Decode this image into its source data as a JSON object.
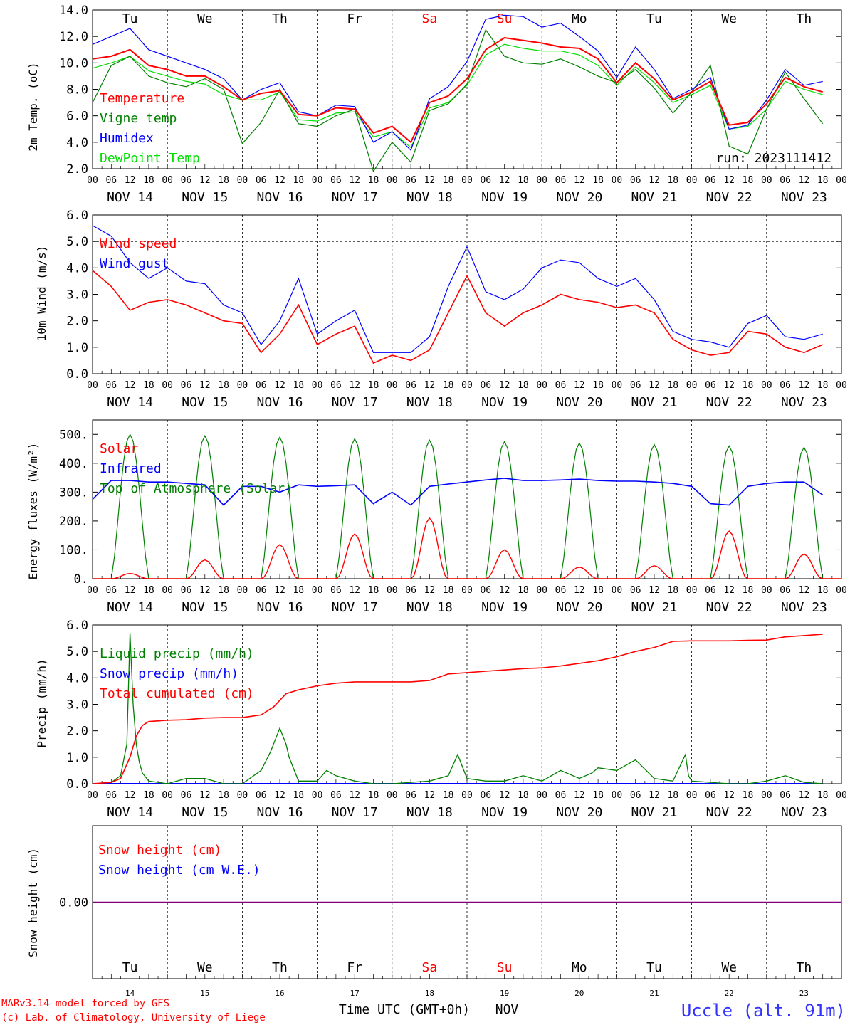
{
  "ticks": [
    "00",
    "06",
    "12",
    "18"
  ],
  "days": [
    {
      "abbr": "Tu",
      "date": "NOV 14",
      "dom": "14",
      "weekend": false
    },
    {
      "abbr": "We",
      "date": "NOV 15",
      "dom": "15",
      "weekend": false
    },
    {
      "abbr": "Th",
      "date": "NOV 16",
      "dom": "16",
      "weekend": false
    },
    {
      "abbr": "Fr",
      "date": "NOV 17",
      "dom": "17",
      "weekend": false
    },
    {
      "abbr": "Sa",
      "date": "NOV 18",
      "dom": "18",
      "weekend": true
    },
    {
      "abbr": "Su",
      "date": "NOV 19",
      "dom": "19",
      "weekend": true
    },
    {
      "abbr": "Mo",
      "date": "NOV 20",
      "dom": "20",
      "weekend": false
    },
    {
      "abbr": "Tu",
      "date": "NOV 21",
      "dom": "21",
      "weekend": false
    },
    {
      "abbr": "We",
      "date": "NOV 22",
      "dom": "22",
      "weekend": false
    },
    {
      "abbr": "Th",
      "date": "NOV 23",
      "dom": "23",
      "weekend": false
    }
  ],
  "colors": {
    "red": "#ff0000",
    "green": "#008000",
    "blue": "#0000ff",
    "lime": "#00e000",
    "purple": "#800080",
    "grid": "#000000"
  },
  "footer": {
    "credit1": "MARv3.14 model forced by GFS",
    "credit2": "(c) Lab. of Climatology, University of Liege",
    "xlabel": "Time UTC (GMT+0h)",
    "month": "NOV",
    "location": "Uccle (alt. 91m)"
  },
  "chart_data": [
    {
      "type": "line",
      "ylabel": "2m Temp. (oC)",
      "ylim": [
        2,
        14
      ],
      "yticks": [
        "2.0",
        "4.0",
        "6.0",
        "8.0",
        "10.0",
        "12.0",
        "14.0"
      ],
      "annotation": "run: 2023111412",
      "x_hours": [
        0,
        6,
        12,
        18,
        24,
        30,
        36,
        42,
        48,
        54,
        60,
        66,
        72,
        78,
        84,
        90,
        96,
        102,
        108,
        114,
        120,
        126,
        132,
        138,
        144,
        150,
        156,
        162,
        168,
        174,
        180,
        186,
        192,
        198,
        204,
        210,
        216,
        222,
        228,
        234
      ],
      "series": [
        {
          "name": "Temperature",
          "color": "red",
          "values": [
            10.3,
            10.5,
            11.0,
            9.8,
            9.5,
            9.0,
            9.0,
            8.2,
            7.2,
            7.7,
            7.9,
            6.1,
            6.0,
            6.6,
            6.5,
            4.7,
            5.2,
            4.0,
            7.0,
            7.5,
            8.8,
            11.0,
            11.9,
            11.7,
            11.5,
            11.2,
            11.1,
            10.3,
            8.5,
            10.0,
            8.8,
            7.2,
            7.8,
            8.6,
            5.3,
            5.5,
            6.9,
            8.9,
            8.2,
            7.8
          ]
        },
        {
          "name": "Vigne temp",
          "color": "green",
          "values": [
            7.0,
            9.8,
            10.5,
            9.0,
            8.5,
            8.2,
            8.8,
            8.0,
            3.9,
            5.5,
            8.0,
            5.4,
            5.2,
            6.0,
            6.5,
            1.8,
            4.0,
            2.5,
            6.4,
            6.9,
            8.4,
            12.5,
            10.5,
            10.0,
            9.9,
            10.3,
            9.7,
            9.0,
            8.5,
            9.5,
            8.1,
            6.2,
            7.8,
            9.8,
            3.7,
            3.1,
            6.5,
            9.3,
            7.3,
            5.4
          ]
        },
        {
          "name": "Humidex",
          "color": "blue",
          "values": [
            11.4,
            12.0,
            12.6,
            11.0,
            10.5,
            10.0,
            9.5,
            8.8,
            7.2,
            8.0,
            8.5,
            6.3,
            6.0,
            6.8,
            6.7,
            4.0,
            4.8,
            3.4,
            7.3,
            8.2,
            10.1,
            13.3,
            13.6,
            13.5,
            12.7,
            13.0,
            12.0,
            10.9,
            8.9,
            11.2,
            9.5,
            7.3,
            8.0,
            8.9,
            5.0,
            5.3,
            7.2,
            9.5,
            8.3,
            8.6
          ]
        },
        {
          "name": "DewPoint Temp",
          "color": "lime",
          "values": [
            9.6,
            10.0,
            10.5,
            9.4,
            9.0,
            8.6,
            8.4,
            7.6,
            7.2,
            7.2,
            7.8,
            5.7,
            5.6,
            6.2,
            6.3,
            4.4,
            4.8,
            3.6,
            6.6,
            7.0,
            8.3,
            10.6,
            11.4,
            11.1,
            10.9,
            10.9,
            10.6,
            9.8,
            8.3,
            9.7,
            8.5,
            7.0,
            7.6,
            8.3,
            5.0,
            5.2,
            6.5,
            8.6,
            8.0,
            7.6
          ]
        }
      ]
    },
    {
      "type": "line",
      "ylabel": "10m Wind (m/s)",
      "ylim": [
        0,
        6
      ],
      "yticks": [
        "0.0",
        "1.0",
        "2.0",
        "3.0",
        "4.0",
        "5.0",
        "6.0"
      ],
      "ref_line": 5.0,
      "x_hours": [
        0,
        6,
        12,
        18,
        24,
        30,
        36,
        42,
        48,
        54,
        60,
        66,
        72,
        78,
        84,
        90,
        96,
        102,
        108,
        114,
        120,
        126,
        132,
        138,
        144,
        150,
        156,
        162,
        168,
        174,
        180,
        186,
        192,
        198,
        204,
        210,
        216,
        222,
        228,
        234
      ],
      "series": [
        {
          "name": "Wind speed",
          "color": "red",
          "values": [
            3.9,
            3.3,
            2.4,
            2.7,
            2.8,
            2.6,
            2.3,
            2.0,
            1.9,
            0.8,
            1.5,
            2.6,
            1.1,
            1.5,
            1.8,
            0.4,
            0.7,
            0.5,
            0.9,
            2.3,
            3.7,
            2.3,
            1.8,
            2.3,
            2.6,
            3.0,
            2.8,
            2.7,
            2.5,
            2.6,
            2.3,
            1.3,
            0.9,
            0.7,
            0.8,
            1.6,
            1.5,
            1.0,
            0.8,
            1.1
          ]
        },
        {
          "name": "Wind gust",
          "color": "blue",
          "values": [
            5.6,
            5.2,
            4.2,
            3.6,
            4.0,
            3.5,
            3.4,
            2.6,
            2.3,
            1.1,
            2.0,
            3.6,
            1.5,
            2.0,
            2.4,
            0.8,
            0.8,
            0.8,
            1.4,
            3.3,
            4.8,
            3.1,
            2.8,
            3.2,
            4.0,
            4.3,
            4.2,
            3.6,
            3.3,
            3.6,
            2.8,
            1.6,
            1.3,
            1.2,
            1.0,
            1.9,
            2.2,
            1.4,
            1.3,
            1.5
          ]
        }
      ]
    },
    {
      "type": "line",
      "ylabel": "Energy fluxes (W/m²)",
      "ylim": [
        0,
        550
      ],
      "yticks": [
        "0.",
        "100.",
        "200.",
        "300.",
        "400.",
        "500."
      ],
      "solar_peaks": [
        18,
        65,
        118,
        155,
        210,
        100,
        40,
        45,
        165,
        85
      ],
      "toa_peaks": [
        500,
        495,
        490,
        485,
        480,
        475,
        470,
        465,
        460,
        455
      ],
      "series": [
        {
          "name": "Solar",
          "color": "red"
        },
        {
          "name": "Infrared",
          "color": "blue",
          "x_hours": [
            0,
            6,
            12,
            18,
            24,
            30,
            36,
            42,
            48,
            54,
            60,
            66,
            72,
            78,
            84,
            90,
            96,
            102,
            108,
            114,
            120,
            126,
            132,
            138,
            144,
            150,
            156,
            162,
            168,
            174,
            180,
            186,
            192,
            198,
            204,
            210,
            216,
            222,
            228,
            234
          ],
          "values": [
            275,
            340,
            340,
            335,
            335,
            330,
            325,
            255,
            320,
            320,
            300,
            325,
            320,
            322,
            325,
            260,
            300,
            255,
            320,
            328,
            335,
            342,
            348,
            340,
            340,
            342,
            345,
            340,
            338,
            338,
            335,
            330,
            320,
            260,
            255,
            320,
            330,
            335,
            335,
            290
          ]
        },
        {
          "name": "Top of Atmosphere (Solar)",
          "color": "green"
        }
      ]
    },
    {
      "type": "line",
      "ylabel": "Precip (mm/h)",
      "ylim": [
        0,
        6
      ],
      "yticks": [
        "0.0",
        "1.0",
        "2.0",
        "3.0",
        "4.0",
        "5.0",
        "6.0"
      ],
      "series": [
        {
          "name": "Liquid precip (mm/h)",
          "color": "green",
          "x_hours": [
            0,
            6,
            9,
            11,
            12,
            13,
            14,
            15,
            16,
            18,
            24,
            30,
            36,
            42,
            48,
            54,
            57,
            60,
            62,
            63,
            66,
            72,
            75,
            78,
            84,
            90,
            96,
            102,
            108,
            114,
            117,
            120,
            126,
            132,
            138,
            144,
            150,
            156,
            160,
            162,
            168,
            174,
            180,
            186,
            190,
            191,
            192,
            198,
            204,
            210,
            216,
            222,
            228,
            234
          ],
          "values": [
            0,
            0.05,
            0.3,
            1.5,
            5.7,
            3.0,
            1.5,
            0.8,
            0.4,
            0.1,
            0,
            0.2,
            0.2,
            0,
            0,
            0.5,
            1.2,
            2.1,
            1.5,
            1.0,
            0.1,
            0.1,
            0.5,
            0.3,
            0.1,
            0,
            0,
            0.05,
            0.1,
            0.3,
            1.1,
            0.2,
            0.1,
            0.1,
            0.3,
            0.1,
            0.5,
            0.2,
            0.4,
            0.6,
            0.5,
            0.9,
            0.2,
            0.1,
            1.1,
            0.3,
            0.1,
            0.05,
            0,
            0,
            0.1,
            0.3,
            0.05,
            0
          ]
        },
        {
          "name": "Snow precip (mm/h)",
          "color": "blue",
          "x_hours": [
            0,
            234
          ],
          "values": [
            0,
            0
          ]
        },
        {
          "name": "Total cumulated (cm)",
          "color": "red",
          "x_hours": [
            0,
            6,
            9,
            12,
            14,
            16,
            18,
            24,
            30,
            36,
            42,
            48,
            54,
            58,
            62,
            66,
            72,
            78,
            84,
            90,
            96,
            102,
            108,
            114,
            120,
            126,
            132,
            138,
            144,
            150,
            156,
            162,
            168,
            174,
            180,
            186,
            192,
            198,
            204,
            210,
            216,
            222,
            228,
            234
          ],
          "values": [
            0,
            0.05,
            0.2,
            1.0,
            1.8,
            2.2,
            2.35,
            2.4,
            2.42,
            2.48,
            2.5,
            2.5,
            2.6,
            2.9,
            3.4,
            3.55,
            3.7,
            3.8,
            3.85,
            3.85,
            3.85,
            3.85,
            3.9,
            4.15,
            4.2,
            4.25,
            4.3,
            4.35,
            4.38,
            4.45,
            4.55,
            4.65,
            4.8,
            5.0,
            5.15,
            5.38,
            5.4,
            5.4,
            5.4,
            5.42,
            5.43,
            5.55,
            5.6,
            5.65
          ]
        }
      ]
    },
    {
      "type": "line",
      "ylabel": "Snow height (cm)",
      "yticks": [
        "0.00"
      ],
      "series": [
        {
          "name": "Snow height (cm)",
          "color": "red",
          "values": [
            0,
            0
          ]
        },
        {
          "name": "Snow height (cm W.E.)",
          "color": "blue",
          "values": [
            0,
            0
          ]
        }
      ]
    }
  ]
}
